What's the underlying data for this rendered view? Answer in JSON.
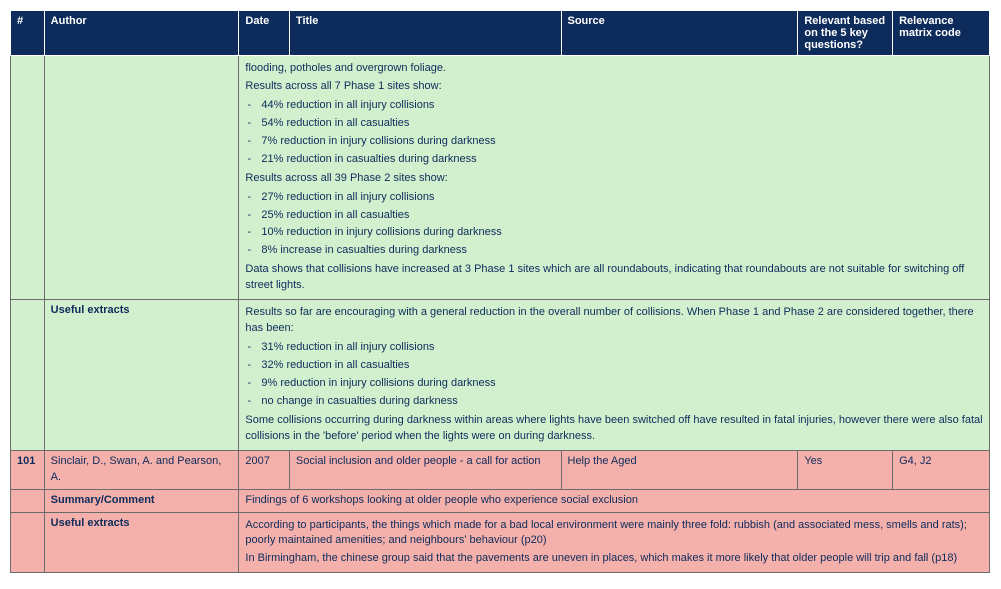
{
  "colors": {
    "header_bg": "#0d2b5b",
    "header_fg": "#ffffff",
    "row_green": "#d3f0ce",
    "row_pink": "#f4b0ab",
    "text": "#0d2b5b",
    "border": "#6b6b6b"
  },
  "columns": {
    "num": "#",
    "author": "Author",
    "date": "Date",
    "title": "Title",
    "source": "Source",
    "relevant": "Relevant based on the 5 key questions?",
    "code": "Relevance matrix code"
  },
  "green_block": {
    "top_intro": "flooding, potholes and overgrown foliage.",
    "p1_heading": "Results across all 7 Phase 1 sites show:",
    "p1_items": [
      "44% reduction in all injury collisions",
      "54% reduction in all casualties",
      "7% reduction in injury collisions during darkness",
      "21% reduction in casualties during darkness"
    ],
    "p2_heading": "Results across all 39 Phase 2 sites show:",
    "p2_items": [
      "27% reduction in all injury collisions",
      "25% reduction in all casualties",
      "10% reduction in injury collisions during darkness",
      "8% increase in casualties during darkness"
    ],
    "data_note": "Data shows that collisions have increased at 3 Phase 1 sites which are all roundabouts, indicating that roundabouts are not suitable for switching off street lights.",
    "useful_label": "Useful extracts",
    "useful_intro": "Results so far are encouraging with a general reduction in the overall number of collisions. When Phase 1 and Phase 2 are considered together, there has been:",
    "useful_items": [
      "31% reduction in all injury collisions",
      "32% reduction in all casualties",
      "9% reduction in injury collisions during darkness",
      "no change in casualties during darkness"
    ],
    "useful_outro": "Some collisions occurring during darkness within areas where lights have been switched off have resulted in fatal injuries, however there were also fatal collisions in the 'before' period when the lights were on during darkness."
  },
  "pink_block": {
    "num": "101",
    "author": "Sinclair, D., Swan, A. and Pearson, A.",
    "date": "2007",
    "title": "Social inclusion and older people - a call for action",
    "source": "Help the Aged",
    "relevant": "Yes",
    "code": "G4, J2",
    "summary_label": "Summary/Comment",
    "summary_text": "Findings of 6 workshops looking at older people who experience social exclusion",
    "useful_label": "Useful extracts",
    "useful_p1": "According to participants, the things which made for a bad local environment were mainly three fold: rubbish (and associated mess, smells and rats); poorly maintained amenities; and neighbours' behaviour (p20)",
    "useful_p2": "In Birmingham, the chinese group said that the pavements are uneven in places, which makes it more likely that older people will trip and fall (p18)"
  }
}
